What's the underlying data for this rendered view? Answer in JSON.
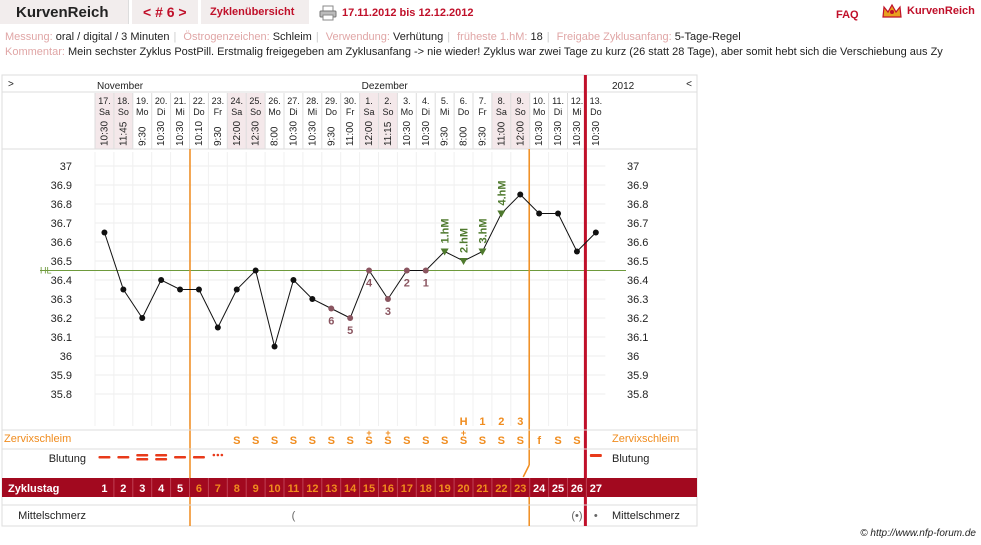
{
  "header": {
    "brand": "KurvenReich",
    "cycle_nav": "< # 6 >",
    "overview_label": "Zyklenübersicht",
    "date_range": "17.11.2012 bis 12.12.2012",
    "faq": "FAQ",
    "logo_text": "KurvenReich"
  },
  "info": {
    "messung_label": "Messung:",
    "messung_value": "oral / digital / 3 Minuten",
    "oestrogen_label": "Östrogenzeichen:",
    "oestrogen_value": "Schleim",
    "verwendung_label": "Verwendung:",
    "verwendung_value": "Verhütung",
    "frueheste_label": "früheste 1.hM:",
    "frueheste_value": "18",
    "freigabe_label": "Freigabe Zyklusanfang:",
    "freigabe_value": "5-Tage-Regel",
    "kommentar_label": "Kommentar:",
    "kommentar_value": "Mein sechster Zyklus PostPill. Erstmalig freigegeben am Zyklusanfang -> nie wieder! Zyklus war zwei Tage zu kurz (26 statt 28 Tage), aber somit hebt sich die Verschiebung aus Zy"
  },
  "nav": {
    "left": ">",
    "right": "<"
  },
  "months": [
    {
      "label": "November",
      "day_index": 0
    },
    {
      "label": "Dezember",
      "day_index": 14
    }
  ],
  "year": "2012",
  "labels": {
    "hl": "HL",
    "zervix": "Zervixschleim",
    "blutung": "Blutung",
    "zyklustag": "Zyklustag",
    "mittelschmerz": "Mittelschmerz"
  },
  "days": [
    {
      "date": "17.",
      "wd": "Sa",
      "time": "10:30",
      "weekend": true
    },
    {
      "date": "18.",
      "wd": "So",
      "time": "11:45",
      "weekend": true
    },
    {
      "date": "19.",
      "wd": "Mo",
      "time": "9:30",
      "weekend": false
    },
    {
      "date": "20.",
      "wd": "Di",
      "time": "10:30",
      "weekend": false
    },
    {
      "date": "21.",
      "wd": "Mi",
      "time": "10:30",
      "weekend": false
    },
    {
      "date": "22.",
      "wd": "Do",
      "time": "10:10",
      "weekend": false
    },
    {
      "date": "23.",
      "wd": "Fr",
      "time": "9:30",
      "weekend": false
    },
    {
      "date": "24.",
      "wd": "Sa",
      "time": "12:00",
      "weekend": true
    },
    {
      "date": "25.",
      "wd": "So",
      "time": "12:30",
      "weekend": true
    },
    {
      "date": "26.",
      "wd": "Mo",
      "time": "8:00",
      "weekend": false
    },
    {
      "date": "27.",
      "wd": "Di",
      "time": "10:30",
      "weekend": false
    },
    {
      "date": "28.",
      "wd": "Mi",
      "time": "10:30",
      "weekend": false
    },
    {
      "date": "29.",
      "wd": "Do",
      "time": "9:30",
      "weekend": false
    },
    {
      "date": "30.",
      "wd": "Fr",
      "time": "11:00",
      "weekend": false
    },
    {
      "date": "1.",
      "wd": "Sa",
      "time": "12:00",
      "weekend": true
    },
    {
      "date": "2.",
      "wd": "So",
      "time": "11:15",
      "weekend": true
    },
    {
      "date": "3.",
      "wd": "Mo",
      "time": "10:30",
      "weekend": false
    },
    {
      "date": "4.",
      "wd": "Di",
      "time": "10:30",
      "weekend": false
    },
    {
      "date": "5.",
      "wd": "Mi",
      "time": "9:30",
      "weekend": false
    },
    {
      "date": "6.",
      "wd": "Do",
      "time": "8:00",
      "weekend": false
    },
    {
      "date": "7.",
      "wd": "Fr",
      "time": "9:30",
      "weekend": false
    },
    {
      "date": "8.",
      "wd": "Sa",
      "time": "11:00",
      "weekend": true
    },
    {
      "date": "9.",
      "wd": "So",
      "time": "12:00",
      "weekend": true
    },
    {
      "date": "10.",
      "wd": "Mo",
      "time": "10:30",
      "weekend": false
    },
    {
      "date": "11.",
      "wd": "Di",
      "time": "10:30",
      "weekend": false
    },
    {
      "date": "12.",
      "wd": "Mi",
      "time": "10:30",
      "weekend": false
    },
    {
      "date": "13.",
      "wd": "Do",
      "time": "10:30",
      "weekend": false
    }
  ],
  "chart_data": {
    "type": "line",
    "ylim": [
      35.7,
      37.05
    ],
    "yticks": [
      "37",
      "36.9",
      "36.8",
      "36.7",
      "36.6",
      "36.5",
      "36.4",
      "36.3",
      "36.2",
      "36.1",
      "36",
      "35.9",
      "35.8"
    ],
    "hl": 36.45,
    "temperatures": [
      36.65,
      36.35,
      36.2,
      36.4,
      36.35,
      36.35,
      36.15,
      36.35,
      36.45,
      36.05,
      36.4,
      36.3,
      36.25,
      36.2,
      36.45,
      36.3,
      36.45,
      36.45,
      36.55,
      36.5,
      36.55,
      36.75,
      36.85,
      36.75,
      36.75,
      36.55,
      36.65
    ],
    "low_numbers": [
      {
        "day": 12,
        "label": "6"
      },
      {
        "day": 13,
        "label": "5"
      },
      {
        "day": 14,
        "label": "4"
      },
      {
        "day": 15,
        "label": "3"
      },
      {
        "day": 16,
        "label": "2"
      },
      {
        "day": 17,
        "label": "1"
      }
    ],
    "high_markers": [
      {
        "day": 18,
        "label": "1.hM"
      },
      {
        "day": 19,
        "label": "2.hM"
      },
      {
        "day": 20,
        "label": "3.hM"
      },
      {
        "day": 21,
        "label": "4.hM"
      }
    ],
    "peak_labels": [
      {
        "day": 19,
        "label": "H"
      },
      {
        "day": 20,
        "label": "1"
      },
      {
        "day": 21,
        "label": "2"
      },
      {
        "day": 22,
        "label": "3"
      }
    ],
    "mucus": [
      "",
      "",
      "",
      "",
      "",
      "",
      "",
      "S",
      "S",
      "S",
      "S",
      "S",
      "S",
      "S",
      "S+",
      "S+",
      "S",
      "S",
      "S",
      "S+",
      "S",
      "S",
      "S",
      "f",
      "S",
      "S",
      ""
    ],
    "cycle_days": [
      "1",
      "2",
      "3",
      "4",
      "5",
      "6",
      "7",
      "8",
      "9",
      "10",
      "11",
      "12",
      "13",
      "14",
      "15",
      "16",
      "17",
      "18",
      "19",
      "20",
      "21",
      "22",
      "23",
      "24",
      "25",
      "26",
      "27"
    ],
    "infertile_days_upto": 5,
    "fertile_range": [
      5,
      22
    ],
    "mittelschmerz": [
      {
        "day": 10,
        "label": "("
      },
      {
        "day": 25,
        "label": "(•)"
      },
      {
        "day": 26,
        "label": "•"
      }
    ]
  },
  "colors": {
    "accent": "#c0102a",
    "orange": "#f08c1e",
    "hl_line": "#6e9a3c",
    "low_point": "#8a5560",
    "high_marker": "#4f7a2e",
    "bleeding": "#e83a1a",
    "zyklustag_bg": "#a2091f"
  },
  "footer": "© http://www.nfp-forum.de"
}
